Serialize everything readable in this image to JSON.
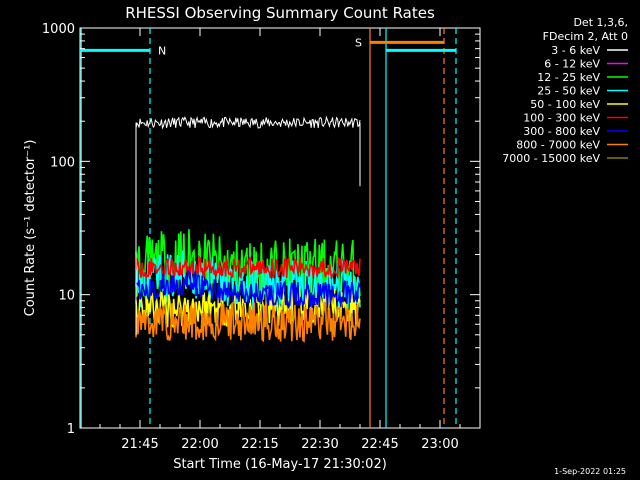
{
  "chart_data": {
    "type": "line",
    "title": "RHESSI Observing Summary Count Rates",
    "xlabel": "Start Time (16-May-17 21:30:02)",
    "ylabel": "Count Rate (s⁻¹ detector⁻¹)",
    "yscale": "log",
    "ylim": [
      1,
      1000
    ],
    "xlim_minutes_after_start": [
      0,
      100
    ],
    "x_tick_minutes": [
      15,
      30,
      45,
      60,
      75,
      90
    ],
    "x_tick_labels": [
      "21:45",
      "22:00",
      "22:15",
      "22:30",
      "22:45",
      "23:00"
    ],
    "y_ticks": [
      1,
      10,
      100,
      1000
    ],
    "y_tick_labels": [
      "1",
      "10",
      "100",
      "1000"
    ],
    "legend_header": [
      "Det 1,3,6,",
      "FDecim 2, Att 0"
    ],
    "data_window_minutes": [
      14,
      70
    ],
    "series": [
      {
        "name": "3 - 6 keV",
        "color": "#ffffff",
        "level": 195,
        "jitter": 0.04
      },
      {
        "name": "6 - 12 keV",
        "color": "#ff00ff",
        "level": 0,
        "jitter": 0
      },
      {
        "name": "12 - 25 keV",
        "color": "#00ff00",
        "level": 15,
        "jitter": 0.25
      },
      {
        "name": "25 - 50 keV",
        "color": "#00ffff",
        "level": 11.5,
        "jitter": 0.2
      },
      {
        "name": "50 - 100 keV",
        "color": "#ffff00",
        "level": 8,
        "jitter": 0.15
      },
      {
        "name": "100 - 300 keV",
        "color": "#ff0000",
        "level": 16,
        "jitter": 0.08
      },
      {
        "name": "300 - 800 keV",
        "color": "#0000ff",
        "level": 10,
        "jitter": 0.1
      },
      {
        "name": "800 - 7000 keV",
        "color": "#ff8000",
        "level": 6.3,
        "jitter": 0.15
      },
      {
        "name": "7000 - 15000 keV",
        "color": "#808000",
        "level": 0,
        "jitter": 0
      }
    ],
    "annotations": [
      {
        "label": "N",
        "color": "#00ffff",
        "start_minute": 0,
        "end_minute": 17.5,
        "level": 680
      },
      {
        "label": "S",
        "color": "#ff8000",
        "start_minute": 72.5,
        "end_minute": 91,
        "level": 780
      },
      {
        "label": "",
        "color": "#00ffff",
        "start_minute": 76.5,
        "end_minute": 94,
        "level": 680
      }
    ],
    "vertical_lines": [
      {
        "minute": 0.3,
        "color": "#00ffff",
        "style": "solid"
      },
      {
        "minute": 17.5,
        "color": "#00ffff",
        "style": "dashed"
      },
      {
        "minute": 72.5,
        "color": "#ff8000",
        "style": "solid"
      },
      {
        "minute": 76.5,
        "color": "#00ffff",
        "style": "solid"
      },
      {
        "minute": 91,
        "color": "#ff8000",
        "style": "dashed"
      },
      {
        "minute": 94,
        "color": "#00ffff",
        "style": "dashed"
      }
    ]
  },
  "footer": {
    "date": "1-Sep-2022 01:25"
  }
}
